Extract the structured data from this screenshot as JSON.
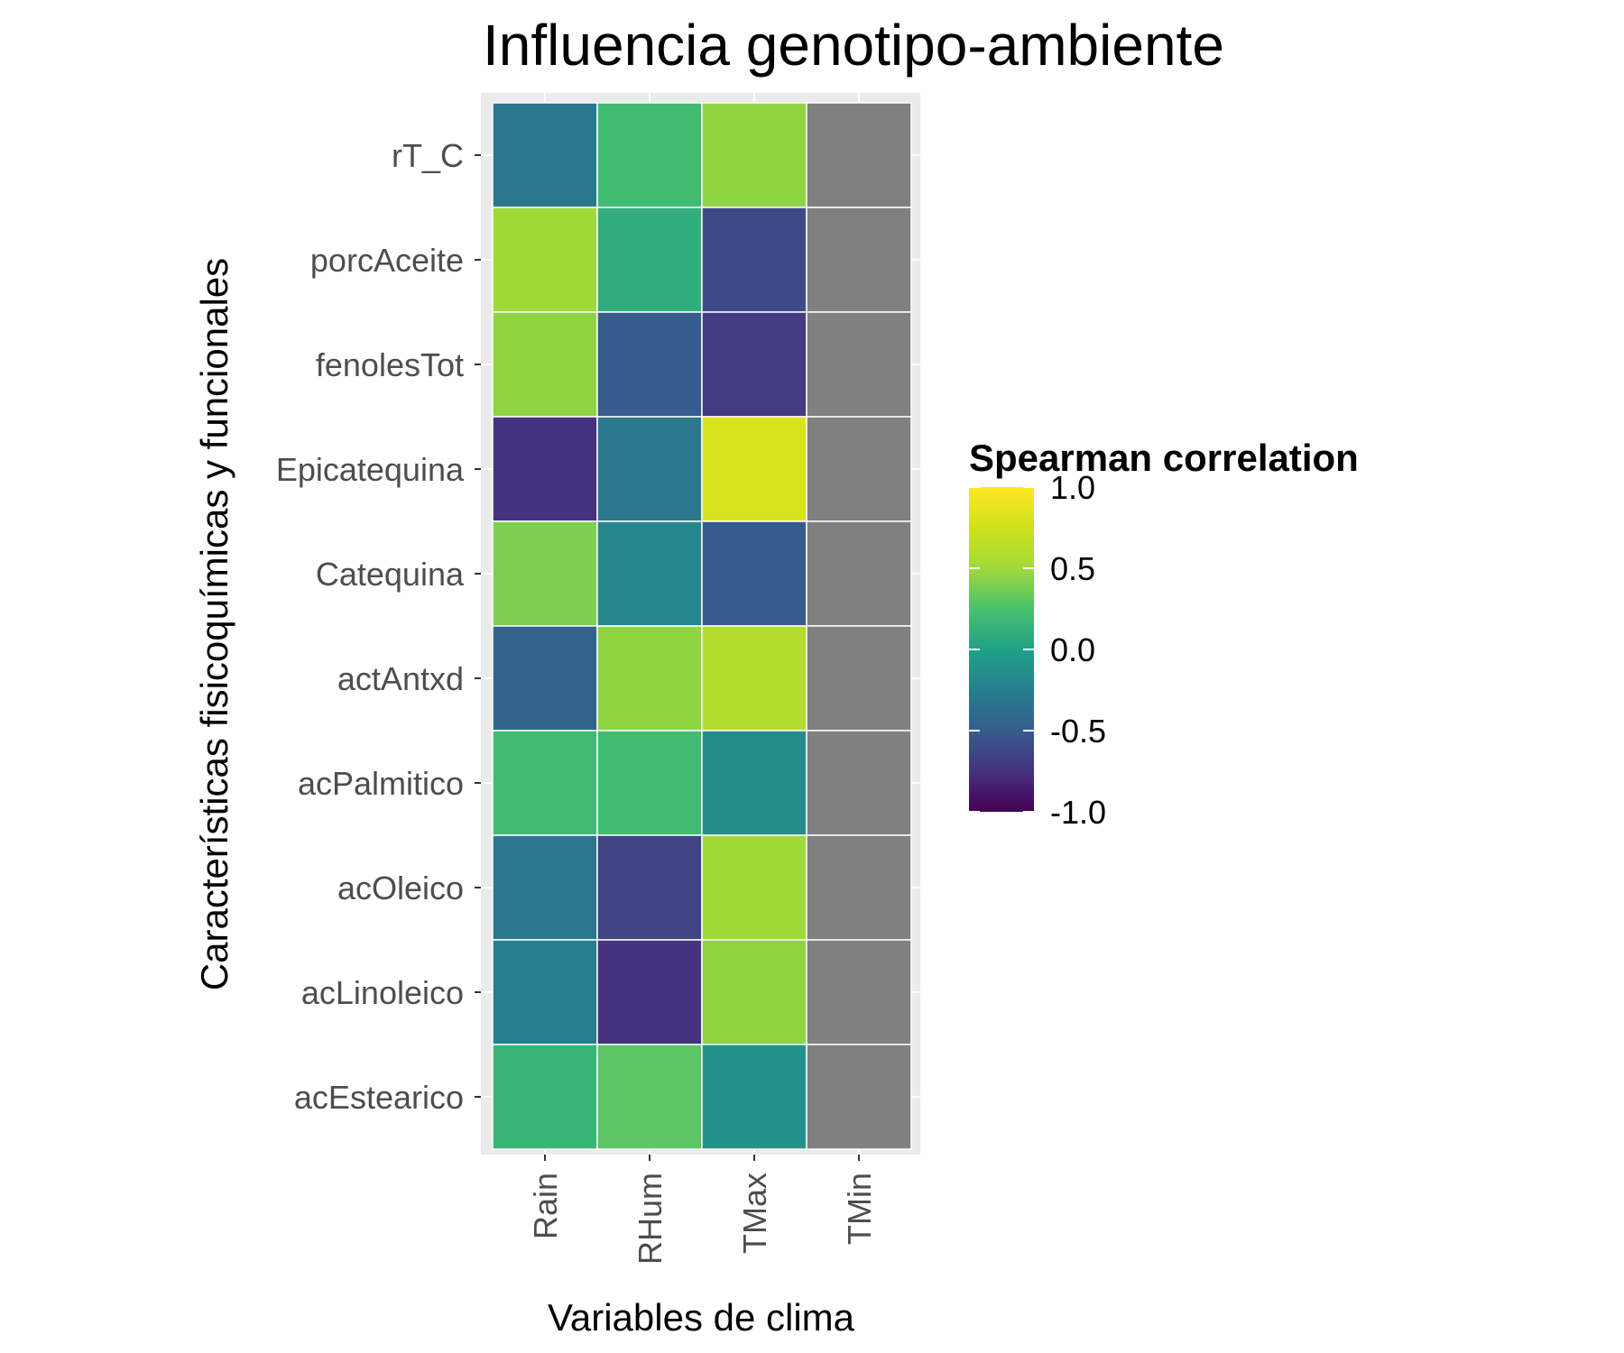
{
  "chart_data": {
    "type": "heatmap",
    "title": "Influencia genotipo-ambiente",
    "xlabel": "Variables de clima",
    "ylabel": "Características fisicoquímicas y funcionales",
    "x_categories": [
      "Rain",
      "RHum",
      "TMax",
      "TMin"
    ],
    "y_categories": [
      "rT_C",
      "porcAceite",
      "fenolesTot",
      "Epicatequina",
      "Catequina",
      "actAntxd",
      "acPalmitico",
      "acOleico",
      "acLinoleico",
      "acEstearico"
    ],
    "values": [
      [
        -0.3,
        0.2,
        0.45,
        null
      ],
      [
        0.5,
        0.1,
        -0.6,
        null
      ],
      [
        0.45,
        -0.5,
        -0.7,
        null
      ],
      [
        -0.75,
        -0.3,
        0.8,
        null
      ],
      [
        0.4,
        -0.2,
        -0.5,
        null
      ],
      [
        -0.45,
        0.45,
        0.6,
        null
      ],
      [
        0.2,
        0.2,
        -0.15,
        null
      ],
      [
        -0.3,
        -0.65,
        0.5,
        null
      ],
      [
        -0.25,
        -0.75,
        0.45,
        null
      ],
      [
        0.15,
        0.3,
        -0.1,
        null
      ]
    ],
    "na_color": "#808080",
    "legend": {
      "title": "Spearman correlation",
      "range": [
        -1.0,
        1.0
      ],
      "ticks": [
        "1.0",
        "0.5",
        "0.0",
        "-0.5",
        "-1.0"
      ],
      "colormap": "viridis",
      "placement": "right"
    },
    "panel_background": "#ebebeb",
    "grid": true
  }
}
